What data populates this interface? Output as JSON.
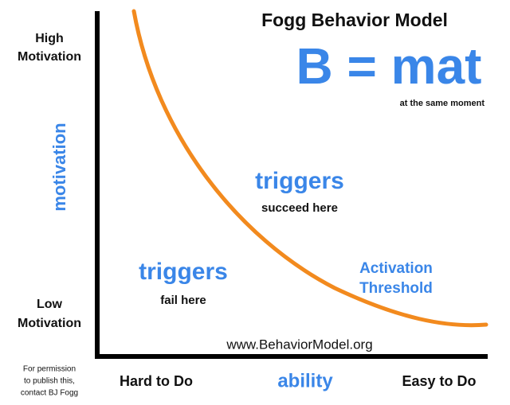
{
  "title": "Fogg Behavior Model",
  "formula": "B = mat",
  "formula_note": "at the same moment",
  "y_axis": {
    "label": "motivation",
    "high": [
      "High",
      "Motivation"
    ],
    "low": [
      "Low",
      "Motivation"
    ]
  },
  "x_axis": {
    "label": "ability",
    "left": "Hard to Do",
    "right": "Easy to Do"
  },
  "regions": {
    "succeed": {
      "heading": "triggers",
      "text": "succeed here"
    },
    "fail": {
      "heading": "triggers",
      "text": "fail here"
    }
  },
  "curve_label": [
    "Activation",
    "Threshold"
  ],
  "url": "www.BehaviorModel.org",
  "permission": [
    "For permission",
    "to publish this,",
    "contact BJ Fogg"
  ]
}
